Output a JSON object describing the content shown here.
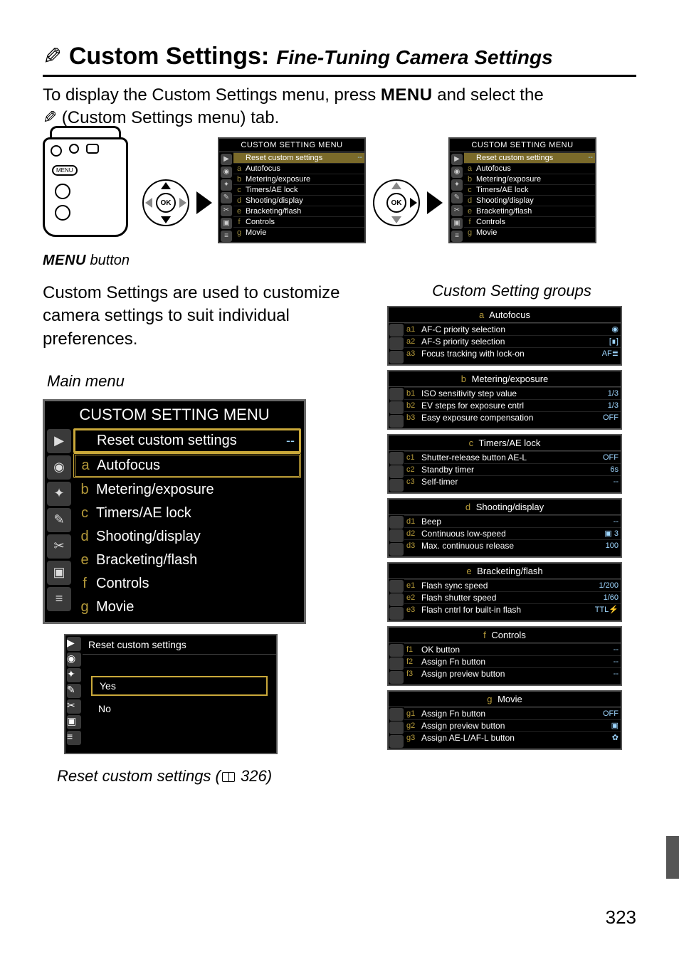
{
  "page_number": "323",
  "title": {
    "icon": "✎",
    "main": "Custom Settings:",
    "sub": "Fine-Tuning Camera Settings"
  },
  "intro": {
    "line1_a": "To display the Custom Settings menu, press ",
    "menu_word": "MENU",
    "line1_b": " and select the ",
    "line2_icon": "✎",
    "line2": " (Custom Settings menu) tab."
  },
  "menu_button_label": "MENU",
  "menu_button_caption": " button",
  "mini_menu_title": "CUSTOM SETTING MENU",
  "mini_menu_items": [
    {
      "pre": "",
      "label": "Reset custom settings",
      "val": "--",
      "hl": true
    },
    {
      "pre": "a",
      "label": "Autofocus"
    },
    {
      "pre": "b",
      "label": "Metering/exposure"
    },
    {
      "pre": "c",
      "label": "Timers/AE lock"
    },
    {
      "pre": "d",
      "label": "Shooting/display"
    },
    {
      "pre": "e",
      "label": "Bracketing/flash"
    },
    {
      "pre": "f",
      "label": "Controls"
    },
    {
      "pre": "g",
      "label": "Movie"
    }
  ],
  "desc": "Custom Settings are used to customize camera settings to suit individual preferences.",
  "main_menu_label": "Main menu",
  "groups_label": "Custom Setting groups",
  "large_menu": {
    "title": "CUSTOM SETTING MENU",
    "rows": [
      {
        "pre": "",
        "label": "Reset custom settings",
        "val": "--",
        "hl": "yellow"
      },
      {
        "pre": "a",
        "label": "Autofocus",
        "hl": "double"
      },
      {
        "pre": "b",
        "label": "Metering/exposure"
      },
      {
        "pre": "c",
        "label": "Timers/AE lock"
      },
      {
        "pre": "d",
        "label": "Shooting/display"
      },
      {
        "pre": "e",
        "label": "Bracketing/flash"
      },
      {
        "pre": "f",
        "label": "Controls"
      },
      {
        "pre": "g",
        "label": "Movie"
      }
    ]
  },
  "reset_menu": {
    "title": "Reset custom settings",
    "yes": "Yes",
    "no": "No",
    "caption_a": "Reset custom settings (",
    "caption_page": " 326)"
  },
  "groups": [
    {
      "pre": "a",
      "title": "Autofocus",
      "rows": [
        {
          "code": "a1",
          "name": "AF-C priority selection",
          "val": "◉"
        },
        {
          "code": "a2",
          "name": "AF-S priority selection",
          "val": "[∎]"
        },
        {
          "code": "a3",
          "name": "Focus tracking with lock-on",
          "val": "AF≣"
        }
      ]
    },
    {
      "pre": "b",
      "title": "Metering/exposure",
      "rows": [
        {
          "code": "b1",
          "name": "ISO sensitivity step value",
          "val": "1/3"
        },
        {
          "code": "b2",
          "name": "EV steps for exposure cntrl",
          "val": "1/3"
        },
        {
          "code": "b3",
          "name": "Easy exposure compensation",
          "val": "OFF"
        }
      ]
    },
    {
      "pre": "c",
      "title": "Timers/AE lock",
      "rows": [
        {
          "code": "c1",
          "name": "Shutter-release button AE-L",
          "val": "OFF"
        },
        {
          "code": "c2",
          "name": "Standby timer",
          "val": "6s"
        },
        {
          "code": "c3",
          "name": "Self-timer",
          "val": "--"
        }
      ]
    },
    {
      "pre": "d",
      "title": "Shooting/display",
      "rows": [
        {
          "code": "d1",
          "name": "Beep",
          "val": "--"
        },
        {
          "code": "d2",
          "name": "Continuous low-speed",
          "val": "▣ 3"
        },
        {
          "code": "d3",
          "name": "Max. continuous release",
          "val": "100"
        }
      ]
    },
    {
      "pre": "e",
      "title": "Bracketing/flash",
      "rows": [
        {
          "code": "e1",
          "name": "Flash sync speed",
          "val": "1/200"
        },
        {
          "code": "e2",
          "name": "Flash shutter speed",
          "val": "1/60"
        },
        {
          "code": "e3",
          "name": "Flash cntrl for built-in flash",
          "val": "TTL⚡"
        }
      ]
    },
    {
      "pre": "f",
      "title": "Controls",
      "rows": [
        {
          "code": "f1",
          "name": "OK button",
          "val": "--"
        },
        {
          "code": "f2",
          "name": "Assign Fn button",
          "val": "--"
        },
        {
          "code": "f3",
          "name": "Assign preview button",
          "val": "--"
        }
      ]
    },
    {
      "pre": "g",
      "title": "Movie",
      "rows": [
        {
          "code": "g1",
          "name": "Assign Fn button",
          "val": "OFF"
        },
        {
          "code": "g2",
          "name": "Assign preview button",
          "val": "▣"
        },
        {
          "code": "g3",
          "name": "Assign AE-L/AF-L button",
          "val": "✿"
        }
      ]
    }
  ],
  "side_icons_small": [
    "▶",
    "◉",
    "✦",
    "✎",
    "✂",
    "▣",
    "≡"
  ],
  "side_icons_large": [
    "▶",
    "◉",
    "✦",
    "✎",
    "✂",
    "▣",
    "≡"
  ],
  "side_icons_group": [
    "▶",
    "◉",
    "✦"
  ],
  "dpad_ok": "OK",
  "colors": {
    "highlight": "#7a6a2a",
    "yellow_border": "#c9a83a",
    "value_blue": "#9ed6ff",
    "prefix_gold": "#b59a3a"
  }
}
